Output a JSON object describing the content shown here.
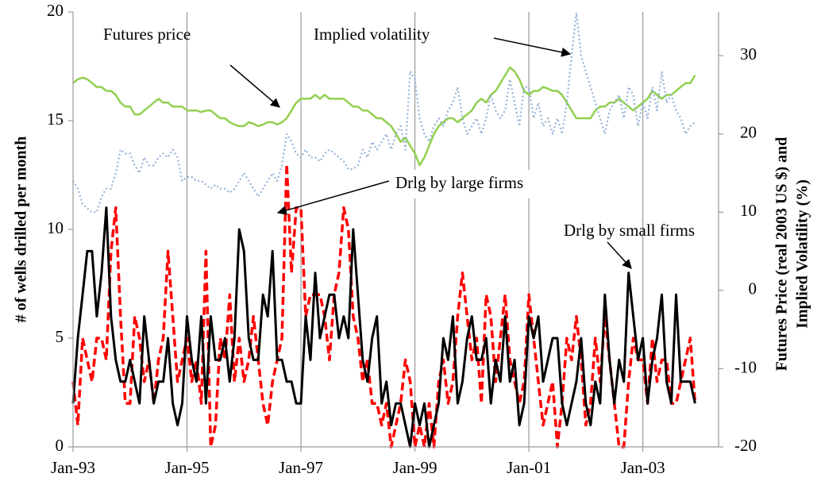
{
  "chart_data": {
    "type": "line",
    "y_label": "# of wells drilled per month",
    "y2_label": [
      "Futures Price (real 2003 US $) and",
      "Implied Volatility (%)"
    ],
    "categories": [
      "Jan-93",
      null,
      null,
      null,
      null,
      null,
      null,
      null,
      null,
      null,
      null,
      null,
      null,
      null,
      null,
      null,
      null,
      null,
      null,
      null,
      null,
      null,
      null,
      null,
      "Jan-95",
      null,
      null,
      null,
      null,
      null,
      null,
      null,
      null,
      null,
      null,
      null,
      null,
      null,
      null,
      null,
      null,
      null,
      null,
      null,
      null,
      null,
      null,
      null,
      "Jan-97",
      null,
      null,
      null,
      null,
      null,
      null,
      null,
      null,
      null,
      null,
      null,
      null,
      null,
      null,
      null,
      null,
      null,
      null,
      null,
      null,
      null,
      null,
      null,
      "Jan-99",
      null,
      null,
      null,
      null,
      null,
      null,
      null,
      null,
      null,
      null,
      null,
      null,
      null,
      null,
      null,
      null,
      null,
      null,
      null,
      null,
      null,
      null,
      null,
      "Jan-01",
      null,
      null,
      null,
      null,
      null,
      null,
      null,
      null,
      null,
      null,
      null,
      null,
      null,
      null,
      null,
      null,
      null,
      null,
      null,
      null,
      null,
      null,
      null,
      "Jan-03",
      null,
      null,
      null,
      null,
      null,
      null,
      null,
      null,
      null,
      null,
      null
    ],
    "ylim": [
      0,
      20
    ],
    "yticks": [
      0,
      5,
      10,
      15,
      20
    ],
    "y2lim": [
      -20,
      35.6
    ],
    "y2ticks": [
      -20,
      -10,
      0,
      10,
      20,
      30
    ],
    "grid": true,
    "series": [
      {
        "name": "Futures price",
        "color": "#92d050",
        "axis": "y2",
        "style": "solid",
        "values": [
          26.5,
          27,
          27.2,
          27,
          26.5,
          26,
          26,
          25.5,
          25.5,
          25,
          24,
          23.5,
          23.5,
          22.5,
          22.5,
          23,
          23.5,
          24,
          24.5,
          24,
          24,
          23.5,
          23.5,
          23.5,
          23,
          23,
          23,
          22.8,
          23,
          23,
          22.5,
          22,
          22,
          21.5,
          21.2,
          21,
          21,
          21.5,
          21.3,
          21,
          21.2,
          21.5,
          21.5,
          21.2,
          21.5,
          22,
          23,
          24,
          24.5,
          24.5,
          24.5,
          25,
          24.5,
          25,
          24.5,
          24.5,
          24.5,
          24.5,
          24,
          23.5,
          23.5,
          23,
          23,
          22.5,
          22,
          22,
          21.5,
          21,
          20,
          19,
          19.5,
          18.5,
          17.5,
          16,
          17,
          18.5,
          20,
          21,
          21.5,
          22,
          22,
          21.5,
          22,
          22.5,
          23,
          24,
          24.5,
          24,
          25,
          25.5,
          26.5,
          27.5,
          28.5,
          28,
          27,
          25.5,
          25,
          25.5,
          25.5,
          26,
          25.8,
          25.5,
          25.5,
          25,
          24,
          23,
          22,
          22,
          22,
          22,
          23,
          23.5,
          23.5,
          24,
          24,
          24.5,
          24,
          23.5,
          23,
          23.5,
          24,
          24.5,
          25.5,
          25,
          24.5,
          25,
          25,
          25.5,
          26,
          26.5,
          26.5,
          27.5
        ]
      },
      {
        "name": "Implied volatility",
        "color": "#95b3d7",
        "axis": "y2",
        "style": "dotted",
        "values": [
          14,
          13,
          11,
          10.5,
          10,
          10,
          12,
          13,
          13,
          15,
          18,
          17.5,
          17.5,
          16,
          15,
          17,
          16,
          16,
          17,
          17.5,
          17,
          18,
          17,
          14,
          14.5,
          14.5,
          14,
          14,
          13.5,
          13,
          13.5,
          13,
          13,
          12.5,
          13,
          14,
          15,
          14,
          13,
          12,
          13,
          14,
          15,
          14,
          16,
          20,
          19,
          17.5,
          17,
          18,
          17,
          17,
          16.5,
          17.5,
          18,
          17.5,
          17,
          16.5,
          15.5,
          15.5,
          16,
          18,
          17,
          19,
          18,
          19,
          20,
          18,
          20,
          21,
          18,
          28,
          27,
          22,
          20,
          19,
          21,
          22,
          21,
          23,
          24,
          26,
          22,
          20,
          21,
          22,
          20,
          22,
          25,
          23,
          22,
          23,
          27,
          24,
          21,
          26,
          26,
          22,
          24,
          21,
          22,
          20,
          22,
          20,
          24,
          30,
          35.5,
          30,
          28,
          26,
          24,
          22,
          20,
          23,
          24,
          25,
          22,
          26,
          25,
          21,
          24,
          22,
          26,
          23,
          28,
          24,
          25,
          23,
          22,
          20,
          21,
          21.5
        ]
      },
      {
        "name": "Drlg by large firms",
        "color": "#ff0000",
        "axis": "y",
        "style": "dashed",
        "values": [
          3,
          1,
          5,
          4,
          3,
          5,
          5,
          4,
          9,
          11,
          6,
          2,
          2,
          6,
          5,
          3,
          4,
          2,
          4,
          5,
          9,
          6,
          3,
          4,
          5,
          3,
          4,
          2,
          9,
          0,
          1,
          5,
          4,
          7,
          3,
          5,
          3,
          4,
          6,
          4,
          2,
          1,
          3,
          4,
          5,
          13,
          8,
          11,
          11,
          6,
          7,
          7,
          7,
          6,
          4,
          7,
          8,
          11,
          10,
          6,
          5,
          3,
          4,
          2,
          2,
          1,
          2,
          0,
          1,
          2,
          4,
          3,
          0,
          1,
          0,
          2,
          0,
          3,
          4,
          2,
          3,
          6,
          8,
          6,
          4,
          5,
          2,
          7,
          6,
          3,
          5,
          7,
          4,
          3,
          2,
          3,
          7,
          5,
          3,
          1,
          2,
          3,
          0,
          2,
          5,
          4,
          6,
          4,
          1,
          2,
          5,
          3,
          6,
          4,
          2,
          0,
          0,
          3,
          5,
          4,
          4,
          2,
          5,
          3,
          4,
          4,
          2,
          2,
          3,
          4,
          5,
          2
        ]
      },
      {
        "name": "Drlg by small firms",
        "color": "#000000",
        "axis": "y",
        "style": "solid",
        "values": [
          2,
          5,
          7,
          9,
          9,
          6,
          8,
          11,
          6,
          4,
          3,
          3,
          4,
          3,
          2,
          6,
          4,
          2,
          3,
          3,
          5,
          2,
          1,
          2,
          6,
          4,
          3,
          6,
          2,
          6,
          4,
          4,
          5,
          3,
          5,
          10,
          9,
          5,
          4,
          4,
          7,
          6,
          9,
          4,
          4,
          3,
          3,
          2,
          2,
          6,
          4,
          8,
          5,
          6,
          7,
          7,
          5,
          6,
          5,
          10,
          7,
          4,
          3,
          5,
          6,
          2,
          3,
          1,
          2,
          2,
          1,
          0,
          2,
          1,
          2,
          0,
          1,
          2,
          5,
          4,
          6,
          2,
          3,
          5,
          6,
          4,
          4,
          5,
          2,
          4,
          3,
          6,
          3,
          4,
          1,
          2,
          6,
          5,
          6,
          3,
          4,
          5,
          5,
          2,
          1,
          2,
          3,
          5,
          2,
          1,
          3,
          2,
          7,
          4,
          2,
          4,
          3,
          8,
          6,
          4,
          5,
          2,
          4,
          5,
          7,
          3,
          2,
          7,
          3,
          3,
          3,
          2
        ]
      }
    ]
  }
}
